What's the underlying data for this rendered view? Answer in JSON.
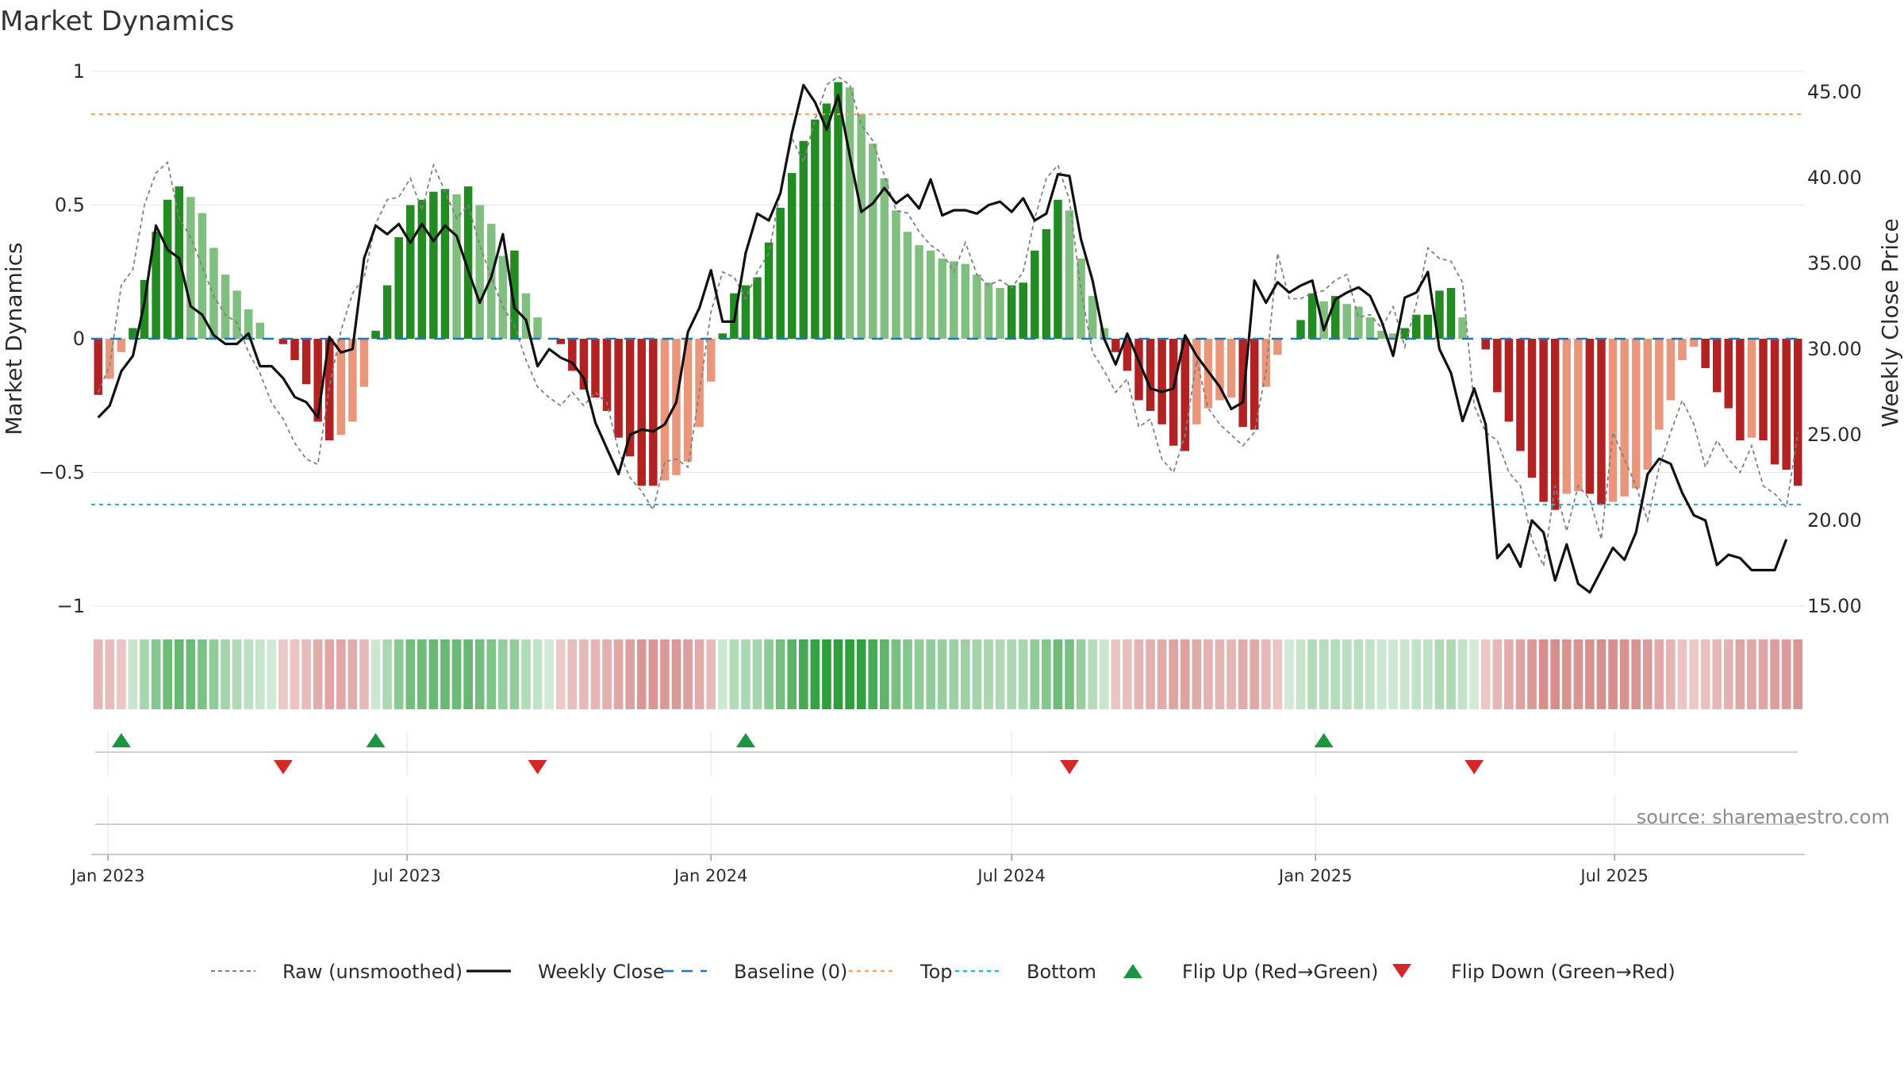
{
  "source": "source: sharemaestro.com",
  "chart_data": {
    "type": "bar",
    "title": "Market Dynamics",
    "ylabel": "Market Dynamics",
    "y2label": "Weekly Close Price",
    "ylim": [
      -1.0,
      1.0
    ],
    "y2lim": [
      15.0,
      46.2
    ],
    "yticks": [
      -1,
      -0.5,
      0,
      0.5,
      1
    ],
    "ytick_labels": [
      "−1",
      "−0.5",
      "0",
      "0.5",
      "1"
    ],
    "y2ticks": [
      15,
      20,
      25,
      30,
      35,
      40,
      45
    ],
    "y2tick_labels": [
      "15.00",
      "20.00",
      "25.00",
      "30.00",
      "35.00",
      "40.00",
      "45.00"
    ],
    "x_start": "2022-12-26",
    "week_step_days": 7,
    "xticks": [
      "2023-01-01",
      "2023-07-01",
      "2024-01-01",
      "2024-07-01",
      "2025-01-01",
      "2025-07-01"
    ],
    "xtick_labels": [
      "Jan 2023",
      "Jul 2023",
      "Jan 2024",
      "Jul 2024",
      "Jan 2025",
      "Jul 2025"
    ],
    "top_line": 0.84,
    "bottom_line": -0.62,
    "grid": true,
    "legend_position": "bottom",
    "bar_values": [
      -0.21,
      -0.15,
      -0.05,
      0.04,
      0.22,
      0.4,
      0.52,
      0.57,
      0.53,
      0.47,
      0.34,
      0.24,
      0.18,
      0.11,
      0.06,
      0,
      -0.02,
      -0.08,
      -0.17,
      -0.31,
      -0.38,
      -0.36,
      -0.31,
      -0.18,
      0.03,
      0.2,
      0.38,
      0.5,
      0.52,
      0.55,
      0.56,
      0.54,
      0.57,
      0.5,
      0.43,
      0.31,
      0.33,
      0.17,
      0.08,
      0,
      -0.02,
      -0.12,
      -0.19,
      -0.22,
      -0.27,
      -0.37,
      -0.44,
      -0.55,
      -0.55,
      -0.53,
      -0.51,
      -0.46,
      -0.33,
      -0.16,
      0.02,
      0.17,
      0.2,
      0.23,
      0.36,
      0.49,
      0.62,
      0.74,
      0.82,
      0.88,
      0.96,
      0.94,
      0.84,
      0.73,
      0.6,
      0.48,
      0.4,
      0.35,
      0.33,
      0.3,
      0.29,
      0.28,
      0.24,
      0.21,
      0.19,
      0.2,
      0.21,
      0.33,
      0.41,
      0.52,
      0.48,
      0.3,
      0.16,
      0.04,
      -0.05,
      -0.12,
      -0.23,
      -0.27,
      -0.32,
      -0.4,
      -0.42,
      -0.32,
      -0.26,
      -0.23,
      -0.22,
      -0.33,
      -0.34,
      -0.18,
      -0.06,
      0,
      0.07,
      0.17,
      0.14,
      0.16,
      0.13,
      0.12,
      0.08,
      0.03,
      0.02,
      0.04,
      0.09,
      0.09,
      0.18,
      0.19,
      0.08,
      0,
      -0.04,
      -0.2,
      -0.31,
      -0.42,
      -0.52,
      -0.61,
      -0.64,
      -0.58,
      -0.57,
      -0.58,
      -0.62,
      -0.61,
      -0.59,
      -0.56,
      -0.49,
      -0.34,
      -0.23,
      -0.08,
      -0.03,
      -0.11,
      -0.2,
      -0.26,
      -0.38,
      -0.37,
      -0.38,
      -0.47,
      -0.49,
      -0.55
    ],
    "raw_values": [
      -0.2,
      -0.1,
      0.2,
      0.26,
      0.5,
      0.62,
      0.66,
      0.45,
      0.38,
      0.27,
      0.16,
      0.09,
      0.06,
      -0.05,
      -0.13,
      -0.24,
      -0.3,
      -0.39,
      -0.45,
      -0.47,
      -0.18,
      0.03,
      0.17,
      0.23,
      0.43,
      0.52,
      0.53,
      0.6,
      0.48,
      0.65,
      0.55,
      0.45,
      0.5,
      0.35,
      0.23,
      0.12,
      0.05,
      -0.08,
      -0.18,
      -0.22,
      -0.25,
      -0.2,
      -0.25,
      -0.2,
      -0.24,
      -0.42,
      -0.52,
      -0.57,
      -0.64,
      -0.46,
      -0.45,
      -0.48,
      -0.2,
      0.1,
      0.25,
      0.23,
      0.15,
      0.25,
      0.32,
      0.55,
      0.75,
      0.66,
      0.82,
      0.95,
      0.98,
      0.95,
      0.8,
      0.74,
      0.61,
      0.48,
      0.47,
      0.4,
      0.35,
      0.32,
      0.25,
      0.36,
      0.24,
      0.2,
      0.22,
      0.19,
      0.25,
      0.45,
      0.6,
      0.65,
      0.52,
      0.18,
      -0.05,
      -0.12,
      -0.2,
      -0.15,
      -0.33,
      -0.3,
      -0.45,
      -0.5,
      -0.36,
      -0.08,
      -0.26,
      -0.32,
      -0.36,
      -0.4,
      -0.35,
      -0.12,
      0.32,
      0.15,
      0.15,
      0.17,
      0.18,
      0.22,
      0.24,
      0.08,
      0.09,
      0.04,
      0.12,
      -0.03,
      0.13,
      0.34,
      0.3,
      0.29,
      0.21,
      -0.25,
      -0.35,
      -0.38,
      -0.5,
      -0.55,
      -0.75,
      -0.85,
      -0.55,
      -0.72,
      -0.55,
      -0.6,
      -0.75,
      -0.35,
      -0.45,
      -0.55,
      -0.68,
      -0.48,
      -0.35,
      -0.23,
      -0.32,
      -0.48,
      -0.38,
      -0.45,
      -0.5,
      -0.4,
      -0.55,
      -0.58,
      -0.63,
      -0.35
    ],
    "close_series": {
      "name": "Weekly Close",
      "values": [
        26.0,
        26.7,
        28.7,
        29.6,
        32.7,
        37.2,
        35.8,
        35.3,
        32.5,
        32.0,
        30.8,
        30.3,
        30.3,
        30.9,
        29.0,
        29.0,
        28.3,
        27.2,
        26.9,
        26.0,
        30.7,
        29.8,
        30.0,
        35.3,
        37.2,
        36.7,
        37.3,
        36.2,
        37.3,
        36.3,
        37.2,
        36.6,
        34.6,
        32.7,
        34.2,
        36.7,
        32.4,
        31.7,
        29.0,
        30.0,
        29.5,
        29.2,
        28.3,
        25.7,
        24.2,
        22.7,
        25.0,
        25.3,
        25.2,
        25.6,
        26.9,
        31.0,
        32.4,
        34.6,
        31.6,
        31.6,
        35.6,
        37.9,
        37.5,
        39.1,
        42.6,
        45.4,
        44.4,
        42.8,
        44.8,
        41.3,
        38.0,
        38.5,
        39.4,
        38.5,
        39.0,
        38.2,
        39.9,
        37.8,
        38.1,
        38.1,
        37.9,
        38.4,
        38.6,
        38.0,
        38.8,
        37.5,
        37.9,
        40.2,
        40.1,
        36.4,
        34.0,
        30.6,
        29.1,
        30.9,
        29.3,
        27.7,
        27.5,
        27.7,
        30.8,
        29.6,
        28.7,
        27.8,
        26.5,
        26.9,
        34.0,
        32.7,
        33.9,
        33.3,
        33.7,
        34.0,
        31.1,
        32.9,
        33.3,
        33.6,
        33.1,
        31.6,
        29.6,
        33.0,
        33.3,
        34.5,
        30.0,
        28.6,
        25.8,
        27.7,
        25.6,
        17.8,
        18.6,
        17.3,
        20.0,
        19.3,
        16.5,
        18.6,
        16.3,
        15.8,
        17.1,
        18.4,
        17.7,
        19.3,
        22.7,
        23.6,
        23.3,
        21.6,
        20.3,
        20.0,
        17.4,
        18.0,
        17.8,
        17.1,
        17.1,
        17.1,
        18.9
      ]
    },
    "flip_up_weeks": [
      2,
      24,
      56,
      106
    ],
    "flip_down_weeks": [
      16,
      38,
      84,
      119
    ],
    "colors": {
      "green_strong": "#228B22",
      "green_light": "#80BF80",
      "red_strong": "#B22222",
      "red_light": "#E9967A",
      "raw_line": "#808080",
      "close_line": "#111111",
      "baseline": "#1F77B4",
      "top": "#F4A460",
      "bottom": "#17BECF",
      "flip_up_marker": "#1A9641",
      "flip_down_marker": "#D62728",
      "axis_text": "#2b2b2b",
      "grid": "#e6e6e6"
    },
    "legend": [
      {
        "key": "raw",
        "label": "Raw (unsmoothed)"
      },
      {
        "key": "close",
        "label": "Weekly Close"
      },
      {
        "key": "baseline",
        "label": "Baseline (0)"
      },
      {
        "key": "top",
        "label": "Top"
      },
      {
        "key": "bottom",
        "label": "Bottom"
      },
      {
        "key": "flipup",
        "label": "Flip Up (Red→Green)"
      },
      {
        "key": "flipdown",
        "label": "Flip Down (Green→Red)"
      }
    ]
  }
}
